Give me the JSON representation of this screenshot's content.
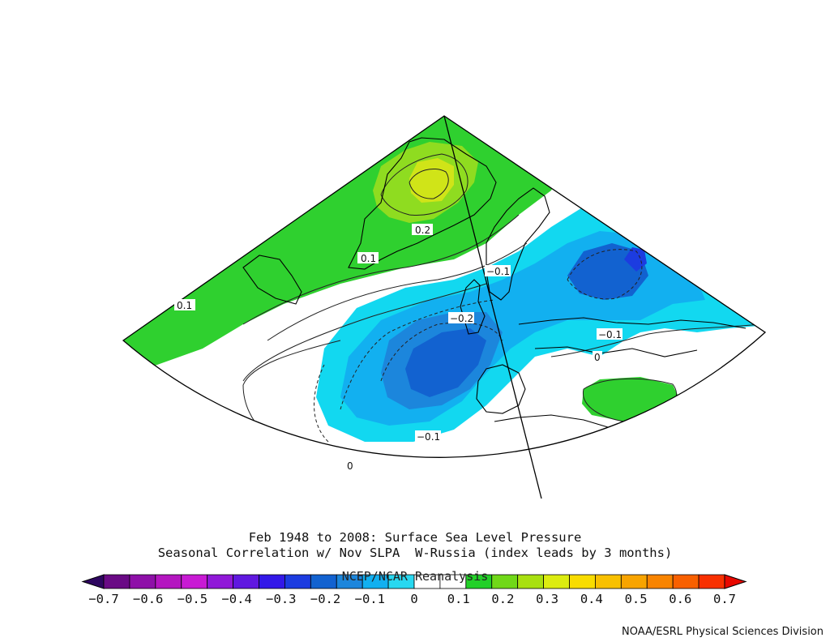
{
  "title": {
    "line1": "Feb 1948 to 2008: Surface Sea Level Pressure",
    "line2": "Seasonal Correlation w/ Nov SLPA  W-Russia (index leads by 3 months)",
    "line3": "NCEP/NCAR Reanalysis"
  },
  "credit": "NOAA/ESRL Physical Sciences Division",
  "contour_labels": [
    {
      "id": "lbl-0.2-greenland",
      "text": "0.2"
    },
    {
      "id": "lbl-0.1-greenland",
      "text": "0.1"
    },
    {
      "id": "lbl-0.1-canada",
      "text": "0.1"
    },
    {
      "id": "lbl-neg0.1-north",
      "text": "−0.1"
    },
    {
      "id": "lbl-neg0.2-atlantic",
      "text": "−0.2"
    },
    {
      "id": "lbl-neg0.1-med",
      "text": "−0.1"
    },
    {
      "id": "lbl-neg0.1-south",
      "text": "−0.1"
    },
    {
      "id": "lbl-0-med",
      "text": "0"
    },
    {
      "id": "lbl-0-south",
      "text": "0"
    }
  ],
  "colorbar": {
    "ticks": [
      "−0.7",
      "−0.6",
      "−0.5",
      "−0.4",
      "−0.3",
      "−0.2",
      "−0.1",
      "0",
      "0.1",
      "0.2",
      "0.3",
      "0.4",
      "0.5",
      "0.6",
      "0.7"
    ],
    "colors": [
      "#2e0660",
      "#6a0a85",
      "#8e10a8",
      "#b416c0",
      "#c81ad4",
      "#9018d8",
      "#6018e0",
      "#3318e8",
      "#1c3ce0",
      "#1262d0",
      "#1c86dc",
      "#12b0f0",
      "#28d8f0",
      "#ffffff",
      "#ffffff",
      "#22d028",
      "#70d818",
      "#a8e010",
      "#dcec10",
      "#f8dc00",
      "#f8c000",
      "#f8a400",
      "#f88400",
      "#f86000",
      "#f83000",
      "#e80800"
    ]
  }
}
